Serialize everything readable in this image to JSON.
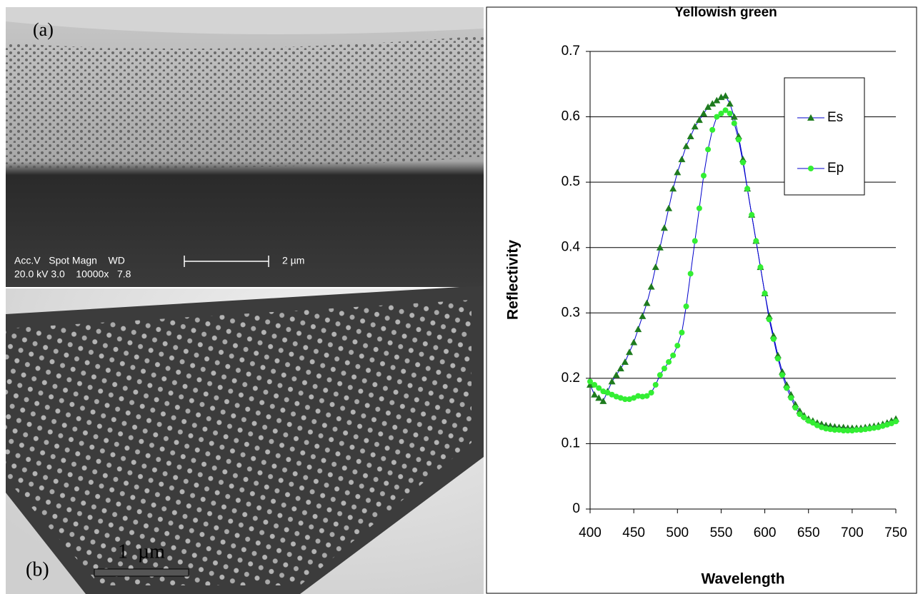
{
  "panels": [
    {
      "label": "(a)",
      "info_header": "Acc.V   Spot Magn    WD",
      "info_values": "20.0 kV 3.0    10000x   7.8",
      "scale": "2 µm"
    },
    {
      "label": "(b)",
      "scale": "1  µm"
    }
  ],
  "chart_data": {
    "type": "line",
    "title": "Yellowish green",
    "x_label": "Wavelength",
    "y_label": "Reflectivity",
    "x": [
      400,
      405,
      410,
      415,
      420,
      425,
      430,
      435,
      440,
      445,
      450,
      455,
      460,
      465,
      470,
      475,
      480,
      485,
      490,
      495,
      500,
      505,
      510,
      515,
      520,
      525,
      530,
      535,
      540,
      545,
      550,
      555,
      560,
      565,
      570,
      575,
      580,
      585,
      590,
      595,
      600,
      605,
      610,
      615,
      620,
      625,
      630,
      635,
      640,
      645,
      650,
      655,
      660,
      665,
      670,
      675,
      680,
      685,
      690,
      695,
      700,
      705,
      710,
      715,
      720,
      725,
      730,
      735,
      740,
      745,
      750
    ],
    "series": [
      {
        "name": "Es",
        "color": "#1e7b1e",
        "line_color": "#0000cc",
        "marker": "triangle",
        "values": [
          0.19,
          0.175,
          0.17,
          0.165,
          0.18,
          0.195,
          0.205,
          0.215,
          0.225,
          0.24,
          0.255,
          0.275,
          0.295,
          0.315,
          0.34,
          0.37,
          0.4,
          0.43,
          0.46,
          0.49,
          0.515,
          0.535,
          0.555,
          0.57,
          0.585,
          0.595,
          0.605,
          0.615,
          0.62,
          0.625,
          0.63,
          0.632,
          0.62,
          0.6,
          0.57,
          0.535,
          0.49,
          0.45,
          0.41,
          0.37,
          0.33,
          0.295,
          0.265,
          0.235,
          0.21,
          0.19,
          0.175,
          0.16,
          0.15,
          0.143,
          0.138,
          0.135,
          0.132,
          0.13,
          0.128,
          0.127,
          0.126,
          0.125,
          0.125,
          0.124,
          0.124,
          0.124,
          0.124,
          0.125,
          0.126,
          0.127,
          0.128,
          0.13,
          0.132,
          0.135,
          0.138
        ]
      },
      {
        "name": "Ep",
        "color": "#33ee33",
        "line_color": "#0000cc",
        "marker": "circle",
        "values": [
          0.195,
          0.19,
          0.185,
          0.18,
          0.178,
          0.175,
          0.172,
          0.17,
          0.168,
          0.168,
          0.17,
          0.173,
          0.172,
          0.173,
          0.178,
          0.19,
          0.205,
          0.215,
          0.225,
          0.235,
          0.25,
          0.27,
          0.31,
          0.36,
          0.41,
          0.46,
          0.51,
          0.55,
          0.58,
          0.6,
          0.605,
          0.61,
          0.605,
          0.59,
          0.565,
          0.53,
          0.49,
          0.45,
          0.41,
          0.37,
          0.33,
          0.29,
          0.26,
          0.23,
          0.205,
          0.185,
          0.17,
          0.155,
          0.145,
          0.14,
          0.135,
          0.132,
          0.128,
          0.125,
          0.123,
          0.122,
          0.121,
          0.121,
          0.12,
          0.12,
          0.12,
          0.121,
          0.121,
          0.122,
          0.123,
          0.124,
          0.125,
          0.127,
          0.129,
          0.131,
          0.134
        ]
      }
    ],
    "xlim": [
      400,
      750
    ],
    "xticks": [
      400,
      450,
      500,
      550,
      600,
      650,
      700,
      750
    ],
    "ylim": [
      0,
      0.7
    ],
    "yticks": [
      0,
      0.1,
      0.2,
      0.3,
      0.4,
      0.5,
      0.6,
      0.7
    ],
    "grid": true,
    "legend": "upper right"
  }
}
